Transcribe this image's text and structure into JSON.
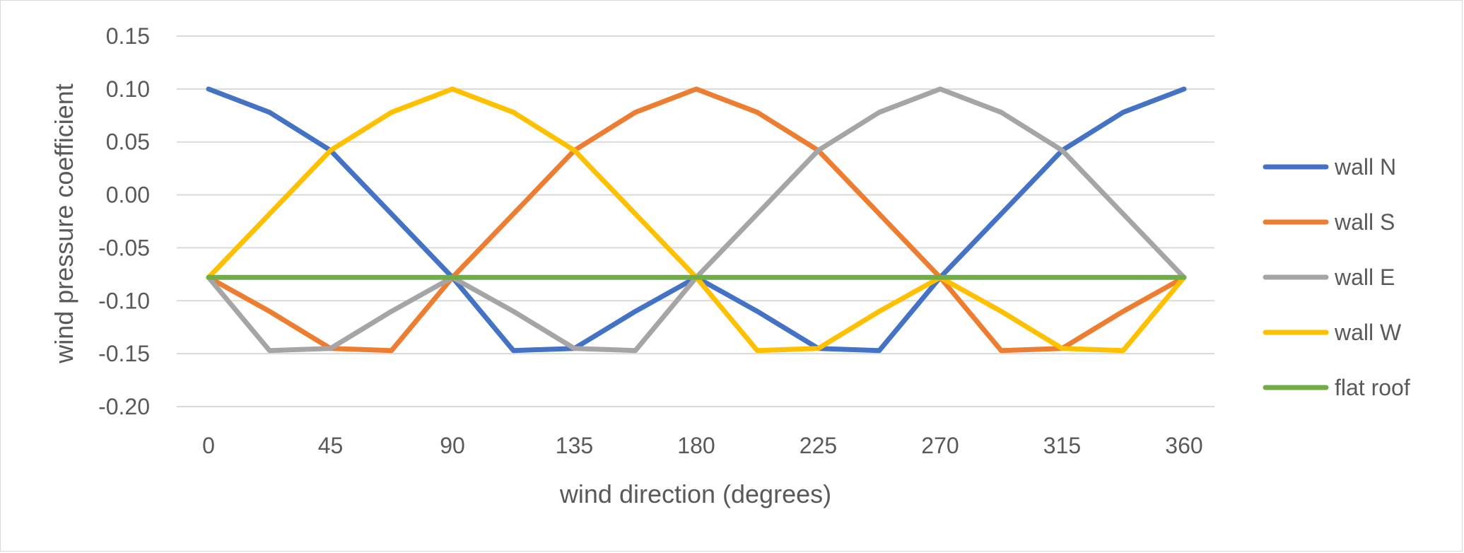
{
  "chart_data": {
    "type": "line",
    "title": "",
    "xlabel": "wind direction (degrees)",
    "ylabel": "wind pressure coefficient",
    "xlim": [
      0,
      360
    ],
    "ylim": [
      -0.2,
      0.15
    ],
    "x_ticks": [
      0,
      45,
      90,
      135,
      180,
      225,
      270,
      315,
      360
    ],
    "x_tick_labels": [
      "0",
      "45",
      "90",
      "135",
      "180",
      "225",
      "270",
      "315",
      "360"
    ],
    "y_ticks": [
      0.15,
      0.1,
      0.05,
      0.0,
      -0.05,
      -0.1,
      -0.15,
      -0.2
    ],
    "y_tick_labels": [
      "0.15",
      "0.10",
      "0.05",
      "0.00",
      "-0.05",
      "-0.10",
      "-0.15",
      "-0.20"
    ],
    "grid": "horizontal",
    "legend_position": "right",
    "x": [
      0,
      22.5,
      45,
      67.5,
      90,
      112.5,
      135,
      157.5,
      180,
      202.5,
      225,
      247.5,
      270,
      292.5,
      315,
      337.5,
      360
    ],
    "series": [
      {
        "name": "wall N",
        "color": "#4472C4",
        "values": [
          0.1,
          0.078,
          0.042,
          -0.018,
          -0.078,
          -0.147,
          -0.145,
          -0.11,
          -0.078,
          -0.11,
          -0.145,
          -0.147,
          -0.078,
          -0.018,
          0.042,
          0.078,
          0.1
        ]
      },
      {
        "name": "wall S",
        "color": "#ED7D31",
        "values": [
          -0.078,
          -0.11,
          -0.145,
          -0.147,
          -0.078,
          -0.018,
          0.042,
          0.078,
          0.1,
          0.078,
          0.042,
          -0.018,
          -0.078,
          -0.147,
          -0.145,
          -0.11,
          -0.078
        ]
      },
      {
        "name": "wall E",
        "color": "#A5A5A5",
        "values": [
          -0.078,
          -0.147,
          -0.145,
          -0.11,
          -0.078,
          -0.11,
          -0.145,
          -0.147,
          -0.078,
          -0.018,
          0.042,
          0.078,
          0.1,
          0.078,
          0.042,
          -0.018,
          -0.078
        ]
      },
      {
        "name": "wall W",
        "color": "#FFC000",
        "values": [
          -0.078,
          -0.018,
          0.042,
          0.078,
          0.1,
          0.078,
          0.042,
          -0.018,
          -0.078,
          -0.147,
          -0.145,
          -0.11,
          -0.078,
          -0.11,
          -0.145,
          -0.147,
          -0.078
        ]
      },
      {
        "name": "flat roof",
        "color": "#70AD47",
        "values": [
          -0.078,
          -0.078,
          -0.078,
          -0.078,
          -0.078,
          -0.078,
          -0.078,
          -0.078,
          -0.078,
          -0.078,
          -0.078,
          -0.078,
          -0.078,
          -0.078,
          -0.078,
          -0.078,
          -0.078
        ]
      }
    ]
  }
}
